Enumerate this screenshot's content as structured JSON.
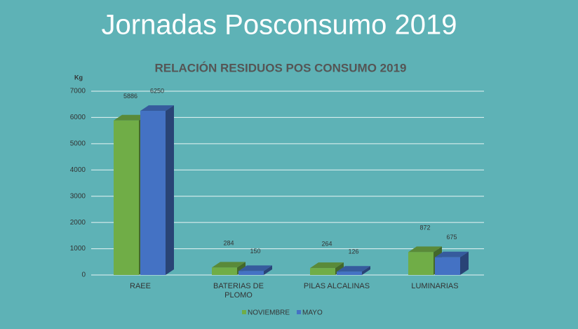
{
  "slide_title": "Jornadas Posconsumo 2019",
  "chart_data": {
    "type": "bar",
    "title": "RELACIÓN RESIDUOS POS CONSUMO 2019",
    "y_label": "Kg",
    "categories": [
      "RAEE",
      "BATERIAS DE PLOMO",
      "PILAS ALCALINAS",
      "LUMINARIAS"
    ],
    "series": [
      {
        "name": "NOVIEMBRE",
        "color": "#70ad47",
        "values": [
          5886,
          284,
          264,
          872
        ]
      },
      {
        "name": "MAYO",
        "color": "#4472c4",
        "values": [
          6250,
          150,
          126,
          675
        ]
      }
    ],
    "ylim": [
      0,
      7000
    ],
    "yticks": [
      0,
      1000,
      2000,
      3000,
      4000,
      5000,
      6000,
      7000
    ],
    "grid": true,
    "legend": "bottom"
  }
}
